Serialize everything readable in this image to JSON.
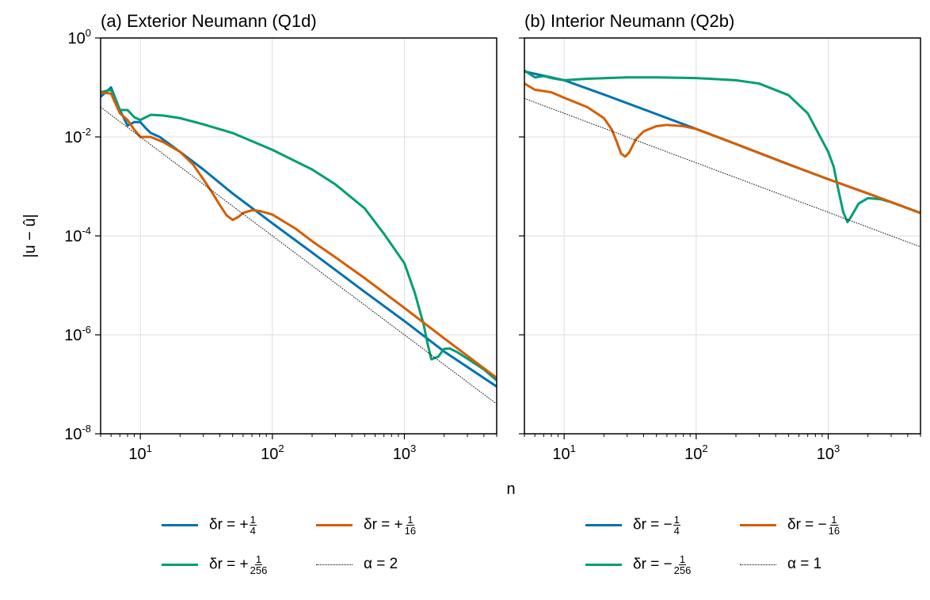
{
  "figure": {
    "ylabel": "|u − û|",
    "xlabel": "n"
  },
  "chart_data": [
    {
      "type": "line",
      "title": "(a) Exterior Neumann (Q1d)",
      "xscale": "log",
      "yscale": "log",
      "xlim": [
        5,
        5000
      ],
      "ylim": [
        1e-08,
        1
      ],
      "grid": true,
      "x_ticks": [
        {
          "value": 10,
          "label": "10",
          "exp": "1"
        },
        {
          "value": 100,
          "label": "10",
          "exp": "2"
        },
        {
          "value": 1000,
          "label": "10",
          "exp": "3"
        }
      ],
      "y_ticks": [
        {
          "value": 1,
          "label": "10",
          "exp": "0"
        },
        {
          "value": 0.01,
          "label": "10",
          "exp": "-2"
        },
        {
          "value": 0.0001,
          "label": "10",
          "exp": "-4"
        },
        {
          "value": 1e-06,
          "label": "10",
          "exp": "-6"
        },
        {
          "value": 1e-08,
          "label": "10",
          "exp": "-8"
        }
      ],
      "series": [
        {
          "name": "δr = +1/4",
          "sign": "+",
          "num": "1",
          "den": "4",
          "color": "#0072b2",
          "style": "solid",
          "points": [
            [
              5,
              0.065
            ],
            [
              6,
              0.1
            ],
            [
              7,
              0.035
            ],
            [
              8,
              0.017
            ],
            [
              9,
              0.02
            ],
            [
              10,
              0.02
            ],
            [
              11,
              0.015
            ],
            [
              12,
              0.012
            ],
            [
              14,
              0.01
            ],
            [
              20,
              0.005
            ],
            [
              30,
              0.0022
            ],
            [
              50,
              0.00072
            ],
            [
              100,
              0.00018
            ],
            [
              200,
              4.6e-05
            ],
            [
              500,
              7.4e-06
            ],
            [
              1000,
              1.9e-06
            ],
            [
              2000,
              4.6e-07
            ],
            [
              5000,
              9e-08
            ]
          ]
        },
        {
          "name": "δr = +1/256",
          "sign": "+",
          "num": "1",
          "den": "256",
          "color": "#009e73",
          "style": "solid",
          "points": [
            [
              5,
              0.08
            ],
            [
              6,
              0.09
            ],
            [
              7,
              0.035
            ],
            [
              8,
              0.035
            ],
            [
              9,
              0.025
            ],
            [
              10,
              0.022
            ],
            [
              11,
              0.025
            ],
            [
              12,
              0.028
            ],
            [
              15,
              0.027
            ],
            [
              20,
              0.024
            ],
            [
              30,
              0.018
            ],
            [
              50,
              0.012
            ],
            [
              100,
              0.0055
            ],
            [
              200,
              0.0022
            ],
            [
              300,
              0.0011
            ],
            [
              500,
              0.00036
            ],
            [
              700,
              0.00011
            ],
            [
              1000,
              2.8e-05
            ],
            [
              1200,
              7e-06
            ],
            [
              1400,
              1.6e-06
            ],
            [
              1500,
              6.5e-07
            ],
            [
              1600,
              3.2e-07
            ],
            [
              1800,
              3.6e-07
            ],
            [
              2000,
              5.2e-07
            ],
            [
              2200,
              5.3e-07
            ],
            [
              2500,
              4.5e-07
            ],
            [
              3000,
              3.3e-07
            ],
            [
              4000,
              2e-07
            ],
            [
              5000,
              1.2e-07
            ]
          ]
        },
        {
          "name": "δr = +1/16",
          "sign": "+",
          "num": "1",
          "den": "16",
          "color": "#d55e00",
          "style": "solid",
          "points": [
            [
              5,
              0.08
            ],
            [
              6,
              0.075
            ],
            [
              7,
              0.03
            ],
            [
              8,
              0.022
            ],
            [
              9,
              0.014
            ],
            [
              10,
              0.01
            ],
            [
              12,
              0.01
            ],
            [
              15,
              0.0078
            ],
            [
              20,
              0.005
            ],
            [
              25,
              0.0028
            ],
            [
              30,
              0.0014
            ],
            [
              35,
              0.00075
            ],
            [
              40,
              0.00042
            ],
            [
              45,
              0.00026
            ],
            [
              50,
              0.00021
            ],
            [
              55,
              0.00024
            ],
            [
              60,
              0.00029
            ],
            [
              70,
              0.00033
            ],
            [
              80,
              0.00032
            ],
            [
              100,
              0.00027
            ],
            [
              150,
              0.00014
            ],
            [
              200,
              7.8e-05
            ],
            [
              300,
              3.7e-05
            ],
            [
              500,
              1.4e-05
            ],
            [
              1000,
              3.5e-06
            ],
            [
              2000,
              8.5e-07
            ],
            [
              5000,
              1.35e-07
            ]
          ]
        },
        {
          "name": "α = 2",
          "label": "α = 2",
          "color": "#000000",
          "style": "dotted",
          "points": [
            [
              5,
              0.04
            ],
            [
              5000,
              4e-08
            ]
          ]
        }
      ]
    },
    {
      "type": "line",
      "title": "(b) Interior Neumann (Q2b)",
      "xscale": "log",
      "yscale": "log",
      "xlim": [
        5,
        5000
      ],
      "ylim": [
        1e-08,
        1
      ],
      "grid": true,
      "x_ticks": [
        {
          "value": 10,
          "label": "10",
          "exp": "1"
        },
        {
          "value": 100,
          "label": "10",
          "exp": "2"
        },
        {
          "value": 1000,
          "label": "10",
          "exp": "3"
        }
      ],
      "y_ticks": [],
      "series": [
        {
          "name": "δr = −1/4",
          "sign": "−",
          "num": "1",
          "den": "4",
          "color": "#0072b2",
          "style": "solid",
          "points": [
            [
              5,
              0.21
            ],
            [
              10,
              0.14
            ],
            [
              20,
              0.072
            ],
            [
              50,
              0.029
            ],
            [
              100,
              0.0145
            ],
            [
              200,
              0.0072
            ],
            [
              500,
              0.0028
            ],
            [
              1000,
              0.0014
            ],
            [
              2000,
              0.00072
            ],
            [
              5000,
              0.00029
            ]
          ]
        },
        {
          "name": "δr = −1/256",
          "sign": "−",
          "num": "1",
          "den": "256",
          "color": "#009e73",
          "style": "solid",
          "points": [
            [
              5,
              0.22
            ],
            [
              6,
              0.16
            ],
            [
              7,
              0.17
            ],
            [
              8,
              0.155
            ],
            [
              10,
              0.14
            ],
            [
              15,
              0.15
            ],
            [
              30,
              0.16
            ],
            [
              50,
              0.16
            ],
            [
              100,
              0.155
            ],
            [
              200,
              0.14
            ],
            [
              300,
              0.12
            ],
            [
              500,
              0.07
            ],
            [
              700,
              0.03
            ],
            [
              1000,
              0.005
            ],
            [
              1100,
              0.0025
            ],
            [
              1200,
              0.0008
            ],
            [
              1300,
              0.0003
            ],
            [
              1400,
              0.00019
            ],
            [
              1500,
              0.00025
            ],
            [
              1700,
              0.00045
            ],
            [
              2000,
              0.00058
            ],
            [
              2500,
              0.00055
            ],
            [
              3000,
              0.00048
            ],
            [
              5000,
              0.00029
            ]
          ]
        },
        {
          "name": "δr = −1/16",
          "sign": "−",
          "num": "1",
          "den": "16",
          "color": "#d55e00",
          "style": "solid",
          "points": [
            [
              5,
              0.12
            ],
            [
              6,
              0.09
            ],
            [
              8,
              0.08
            ],
            [
              10,
              0.062
            ],
            [
              15,
              0.04
            ],
            [
              20,
              0.024
            ],
            [
              23,
              0.014
            ],
            [
              25,
              0.008
            ],
            [
              27,
              0.0046
            ],
            [
              29,
              0.004
            ],
            [
              31,
              0.0048
            ],
            [
              35,
              0.009
            ],
            [
              40,
              0.013
            ],
            [
              50,
              0.0165
            ],
            [
              60,
              0.0175
            ],
            [
              80,
              0.0165
            ],
            [
              100,
              0.0145
            ],
            [
              200,
              0.0072
            ],
            [
              500,
              0.0028
            ],
            [
              1000,
              0.0014
            ],
            [
              2000,
              0.00072
            ],
            [
              5000,
              0.00029
            ]
          ]
        },
        {
          "name": "α = 1",
          "label": "α = 1",
          "color": "#000000",
          "style": "dotted",
          "points": [
            [
              5,
              0.06
            ],
            [
              5000,
              6e-05
            ]
          ]
        }
      ]
    }
  ]
}
